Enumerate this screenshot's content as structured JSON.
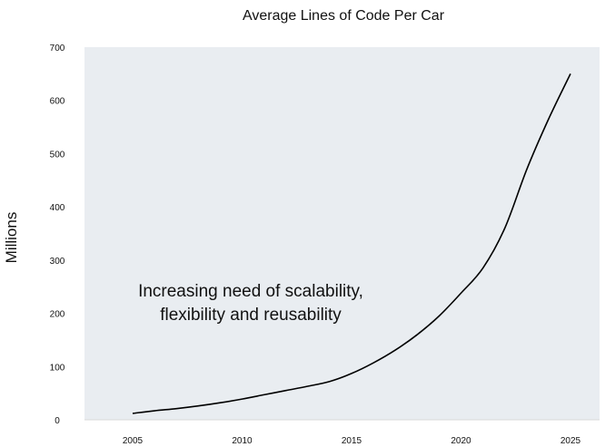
{
  "chart_data": {
    "type": "line",
    "title": "Average Lines of Code Per Car",
    "xlabel": "",
    "ylabel": "Millions",
    "xlim": [
      2005,
      2025
    ],
    "ylim": [
      0,
      700
    ],
    "grid": false,
    "x_ticks": [
      "2005",
      "2010",
      "2015",
      "2020",
      "2025"
    ],
    "y_ticks": [
      "0",
      "100",
      "200",
      "300",
      "400",
      "500",
      "600",
      "700"
    ],
    "annotation": [
      "Increasing need of scalability,",
      "flexibility and reusability"
    ],
    "series": [
      {
        "x": [
          2005,
          2006,
          2007,
          2008,
          2009,
          2010,
          2011,
          2012,
          2013,
          2014,
          2015,
          2016,
          2017,
          2018,
          2019,
          2020,
          2021,
          2022,
          2023,
          2024,
          2025
        ],
        "y": [
          12,
          17,
          21,
          26,
          32,
          39,
          47,
          55,
          63,
          72,
          87,
          107,
          131,
          160,
          195,
          238,
          285,
          360,
          470,
          565,
          650
        ]
      }
    ],
    "colors": {
      "line": "#000000",
      "plot_background": "#e9edf1",
      "axis": "#d9d9d9"
    }
  }
}
